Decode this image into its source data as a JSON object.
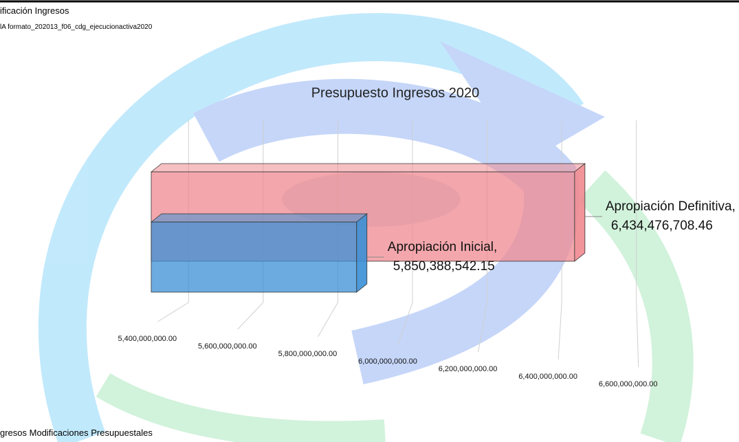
{
  "header": {
    "title": "ificación Ingresos",
    "subtitle": "lA formato_202013_f06_cdg_ejecucionactiva2020"
  },
  "footer": {
    "title": "gresos Modificaciones Presupuestales"
  },
  "chart_data": {
    "type": "bar",
    "orientation": "horizontal",
    "title": "Presupuesto Ingresos 2020",
    "categories": [
      "Apropiación Inicial,",
      "Apropiación Definitiva,"
    ],
    "series": [
      {
        "name": "Apropiación Inicial",
        "color": "#3a8fd6",
        "values": [
          5850388542.15,
          null
        ],
        "value_labels": [
          "5,850,388,542.15",
          null
        ]
      },
      {
        "name": "Apropiación Definitiva",
        "color": "#ef8a90",
        "values": [
          null,
          6434476708.46
        ],
        "value_labels": [
          null,
          "6,434,476,708.46"
        ]
      }
    ],
    "xlim": [
      5300000000,
      6700000000
    ],
    "xticks": [
      {
        "value": 5400000000,
        "label": "5,400,000,000.00"
      },
      {
        "value": 5600000000,
        "label": "5,600,000,000.00"
      },
      {
        "value": 5800000000,
        "label": "5,800,000,000.00"
      },
      {
        "value": 6000000000,
        "label": "6,000,000,000.00"
      },
      {
        "value": 6200000000,
        "label": "6,200,000,000.00"
      },
      {
        "value": 6400000000,
        "label": "6,400,000,000.00"
      },
      {
        "value": 6600000000,
        "label": "6,600,000,000.00"
      }
    ],
    "grid": true
  }
}
